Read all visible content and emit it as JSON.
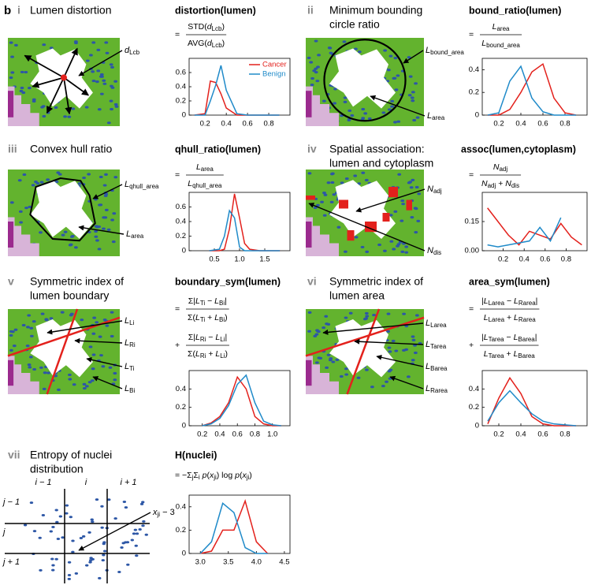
{
  "figure_label": "b",
  "panels": [
    {
      "numeral": "i",
      "title": [
        "Lumen distortion"
      ],
      "annotations": [
        [
          {
            "i": "d"
          },
          {
            "s": "Lcb"
          }
        ]
      ],
      "formula": [
        {
          "prefix": "=",
          "num": [
            "STD(",
            {
              "i": "d"
            },
            {
              "s": "Lcb"
            },
            ")"
          ],
          "den": [
            "AVG(",
            {
              "i": "d"
            },
            {
              "s": "Lcb"
            },
            ")"
          ]
        }
      ]
    },
    {
      "numeral": "ii",
      "title": [
        "Minimum bounding",
        "circle ratio"
      ],
      "annotations": [
        [
          {
            "i": "L"
          },
          {
            "s": "bound_area"
          }
        ],
        [
          {
            "i": "L"
          },
          {
            "s": "area"
          }
        ]
      ],
      "formula": [
        {
          "prefix": "=",
          "num": [
            {
              "i": "L"
            },
            {
              "s": "area"
            }
          ],
          "den": [
            {
              "i": "L"
            },
            {
              "s": "bound_area"
            }
          ]
        }
      ]
    },
    {
      "numeral": "iii",
      "title": [
        "Convex hull ratio"
      ],
      "annotations": [
        [
          {
            "i": "L"
          },
          {
            "s": "qhull_area"
          }
        ],
        [
          {
            "i": "L"
          },
          {
            "s": "area"
          }
        ]
      ],
      "formula": [
        {
          "prefix": "=",
          "num": [
            {
              "i": "L"
            },
            {
              "s": "area"
            }
          ],
          "den": [
            {
              "i": "L"
            },
            {
              "s": "qhull_area"
            }
          ]
        }
      ]
    },
    {
      "numeral": "iv",
      "title": [
        "Spatial association:",
        "lumen and cytoplasm"
      ],
      "annotations": [
        [
          {
            "i": "N"
          },
          {
            "s": "adj"
          }
        ],
        [
          {
            "i": "N"
          },
          {
            "s": "dis"
          }
        ]
      ],
      "formula": [
        {
          "prefix": "=",
          "num": [
            {
              "i": "N"
            },
            {
              "s": "adj"
            }
          ],
          "den": [
            {
              "i": "N"
            },
            {
              "s": "adj"
            },
            " + ",
            {
              "i": "N"
            },
            {
              "s": "dis"
            }
          ]
        }
      ]
    },
    {
      "numeral": "v",
      "title": [
        "Symmetric index of",
        "lumen boundary"
      ],
      "annotations": [
        [
          {
            "i": "L"
          },
          {
            "s": "Li"
          }
        ],
        [
          {
            "i": "L"
          },
          {
            "s": "Ri"
          }
        ],
        [
          {
            "i": "L"
          },
          {
            "s": "Ti"
          }
        ],
        [
          {
            "i": "L"
          },
          {
            "s": "Bi"
          }
        ]
      ],
      "formula": [
        {
          "prefix": "=",
          "num": [
            "Σ|",
            {
              "i": "L"
            },
            {
              "s": "Ti"
            },
            " − ",
            {
              "i": "L"
            },
            {
              "s": "Bi"
            },
            "|"
          ],
          "den": [
            "Σ(",
            {
              "i": "L"
            },
            {
              "s": "Ti"
            },
            " + ",
            {
              "i": "L"
            },
            {
              "s": "Bi"
            },
            ")"
          ]
        },
        {
          "prefix": "+",
          "num": [
            "Σ|",
            {
              "i": "L"
            },
            {
              "s": "Ri"
            },
            " − ",
            {
              "i": "L"
            },
            {
              "s": "Li"
            },
            "|"
          ],
          "den": [
            "Σ(",
            {
              "i": "L"
            },
            {
              "s": "Ri"
            },
            " + ",
            {
              "i": "L"
            },
            {
              "s": "Li"
            },
            ")"
          ]
        }
      ]
    },
    {
      "numeral": "vi",
      "title": [
        "Symmetric index of",
        "lumen area"
      ],
      "annotations": [
        [
          {
            "i": "L"
          },
          {
            "s": "Larea"
          }
        ],
        [
          {
            "i": "L"
          },
          {
            "s": "Tarea"
          }
        ],
        [
          {
            "i": "L"
          },
          {
            "s": "Barea"
          }
        ],
        [
          {
            "i": "L"
          },
          {
            "s": "Rarea"
          }
        ]
      ],
      "formula": [
        {
          "prefix": "=",
          "num": [
            "|",
            {
              "i": "L"
            },
            {
              "s": "Larea"
            },
            " − ",
            {
              "i": "L"
            },
            {
              "s": "Rarea"
            },
            "|"
          ],
          "den": [
            {
              "i": "L"
            },
            {
              "s": "Larea"
            },
            " + ",
            {
              "i": "L"
            },
            {
              "s": "Rarea"
            }
          ]
        },
        {
          "prefix": "+",
          "num": [
            "|",
            {
              "i": "L"
            },
            {
              "s": "Tarea"
            },
            " − ",
            {
              "i": "L"
            },
            {
              "s": "Barea"
            },
            "|"
          ],
          "den": [
            {
              "i": "L"
            },
            {
              "s": "Tarea"
            },
            " + ",
            {
              "i": "L"
            },
            {
              "s": "Barea"
            }
          ]
        }
      ]
    },
    {
      "numeral": "vii",
      "title": [
        "Entropy of nuclei",
        "distribution"
      ],
      "annotations": [
        [
          {
            "i": "x"
          },
          {
            "s": "ji"
          },
          " − 3"
        ]
      ],
      "col_labels": [
        "i − 1",
        "i",
        "i + 1"
      ],
      "row_labels": [
        "j − 1",
        "j",
        "j + 1"
      ],
      "formula": [
        {
          "prefix": "=",
          "line": [
            "−Σ",
            {
              "s": "j"
            },
            "Σ",
            {
              "s": "i"
            },
            " ",
            {
              "i": "p"
            },
            "(",
            {
              "i": "x"
            },
            {
              "s": "ji"
            },
            ") log ",
            {
              "i": "p"
            },
            "(",
            {
              "i": "x"
            },
            {
              "s": "ji"
            },
            ")"
          ]
        }
      ]
    }
  ],
  "chart_data": [
    {
      "type": "line",
      "title": "distortion(lumen)",
      "legend": "upper right",
      "x": [
        0.1,
        0.2,
        0.25,
        0.3,
        0.35,
        0.4,
        0.5,
        0.6,
        0.7,
        0.8,
        0.9
      ],
      "series": [
        {
          "name": "Cancer",
          "color": "#e3211c",
          "values": [
            0,
            0.02,
            0.48,
            0.46,
            0.3,
            0.1,
            0,
            0,
            0,
            0,
            0
          ]
        },
        {
          "name": "Benign",
          "color": "#1f8ac9",
          "values": [
            0,
            0,
            0.2,
            0.42,
            0.7,
            0.35,
            0.02,
            0,
            0,
            0,
            0
          ]
        }
      ],
      "xlim": [
        0.05,
        1.0
      ],
      "ylim": [
        0,
        0.8
      ],
      "xticks": [
        0.2,
        0.4,
        0.6,
        0.8
      ],
      "yticks": [
        0,
        0.2,
        0.4,
        0.6
      ]
    },
    {
      "type": "line",
      "title": "bound_ratio(lumen)",
      "x": [
        0.1,
        0.2,
        0.3,
        0.4,
        0.5,
        0.6,
        0.7,
        0.8,
        0.9
      ],
      "series": [
        {
          "color": "#e3211c",
          "values": [
            0,
            0,
            0.05,
            0.2,
            0.38,
            0.45,
            0.15,
            0.02,
            0
          ]
        },
        {
          "color": "#1f8ac9",
          "values": [
            0,
            0.02,
            0.3,
            0.43,
            0.15,
            0.03,
            0,
            0,
            0
          ]
        }
      ],
      "xlim": [
        0.05,
        1.0
      ],
      "ylim": [
        0,
        0.5
      ],
      "xticks": [
        0.2,
        0.4,
        0.6,
        0.8
      ],
      "yticks": [
        0,
        0.2,
        0.4
      ]
    },
    {
      "type": "line",
      "title": "qhull_ratio(lumen)",
      "x": [
        0.4,
        0.6,
        0.7,
        0.8,
        0.9,
        1.0,
        1.1,
        1.2,
        1.4,
        1.8
      ],
      "series": [
        {
          "color": "#e3211c",
          "values": [
            0,
            0,
            0.02,
            0.3,
            0.78,
            0.45,
            0.1,
            0.02,
            0,
            0
          ]
        },
        {
          "color": "#1f8ac9",
          "values": [
            0,
            0.02,
            0.2,
            0.55,
            0.45,
            0.05,
            0,
            0,
            0,
            0
          ]
        }
      ],
      "xlim": [
        0,
        2
      ],
      "ylim": [
        0,
        0.8
      ],
      "xticks": [
        0.5,
        {
          "value": 1,
          "label": "1.0"
        },
        1.5
      ],
      "yticks": [
        0,
        0.2,
        0.4,
        0.6
      ]
    },
    {
      "type": "line",
      "title": "assoc(lumen,cytoplasm)",
      "x": [
        0.05,
        0.15,
        0.25,
        0.35,
        0.45,
        0.55,
        0.65,
        0.75,
        0.85,
        0.95
      ],
      "series": [
        {
          "color": "#e3211c",
          "values": [
            0.22,
            0.15,
            0.08,
            0.03,
            0.1,
            0.08,
            0.06,
            0.14,
            0.07,
            0.03
          ]
        },
        {
          "color": "#1f8ac9",
          "values": [
            0.03,
            0.02,
            0.03,
            0.04,
            0.05,
            0.12,
            0.05,
            0.17,
            null,
            null
          ]
        }
      ],
      "xlim": [
        0,
        1
      ],
      "ylim": [
        0,
        0.3
      ],
      "xticks": [
        0.2,
        0.4,
        0.6,
        0.8
      ],
      "yticks": [
        {
          "value": 0,
          "label": "0.00"
        },
        0.15
      ]
    },
    {
      "type": "line",
      "title": "boundary_sym(lumen)",
      "x": [
        0.2,
        0.3,
        0.4,
        0.5,
        0.6,
        0.7,
        0.8,
        0.9,
        1.0,
        1.1
      ],
      "series": [
        {
          "color": "#e3211c",
          "values": [
            0,
            0.03,
            0.1,
            0.25,
            0.53,
            0.4,
            0.1,
            0.02,
            0,
            0
          ]
        },
        {
          "color": "#1f8ac9",
          "values": [
            0,
            0.02,
            0.08,
            0.22,
            0.45,
            0.55,
            0.25,
            0.05,
            0.01,
            0
          ]
        }
      ],
      "xlim": [
        0.05,
        1.2
      ],
      "ylim": [
        0,
        0.6
      ],
      "xticks": [
        0.2,
        0.4,
        0.6,
        0.8,
        {
          "value": 1,
          "label": "1.0"
        }
      ],
      "yticks": [
        0,
        0.2,
        0.4
      ]
    },
    {
      "type": "line",
      "title": "area_sym(lumen)",
      "x": [
        0.1,
        0.2,
        0.3,
        0.4,
        0.5,
        0.6,
        0.7,
        0.8,
        0.9
      ],
      "series": [
        {
          "color": "#e3211c",
          "values": [
            0.02,
            0.3,
            0.52,
            0.35,
            0.1,
            0.02,
            0,
            0,
            0
          ]
        },
        {
          "color": "#1f8ac9",
          "values": [
            0.05,
            0.25,
            0.38,
            0.25,
            0.13,
            0.05,
            0.02,
            0.01,
            0
          ]
        }
      ],
      "xlim": [
        0.05,
        1.0
      ],
      "ylim": [
        0,
        0.6
      ],
      "xticks": [
        0.2,
        0.4,
        0.6,
        0.8
      ],
      "yticks": [
        0,
        0.2,
        0.4
      ]
    },
    {
      "type": "line",
      "title": "H(nuclei)",
      "x": [
        3.0,
        3.2,
        3.4,
        3.6,
        3.8,
        4.0,
        4.2
      ],
      "series": [
        {
          "color": "#e3211c",
          "values": [
            0,
            0.02,
            0.2,
            0.2,
            0.45,
            0.1,
            0
          ]
        },
        {
          "color": "#1f8ac9",
          "values": [
            0,
            0.1,
            0.43,
            0.35,
            0.05,
            0,
            0
          ]
        }
      ],
      "xlim": [
        2.8,
        4.6
      ],
      "ylim": [
        0,
        0.5
      ],
      "xticks": [
        {
          "value": 3,
          "label": "3.0"
        },
        3.5,
        {
          "value": 4,
          "label": "4.0"
        },
        4.5
      ],
      "yticks": [
        0,
        0.2,
        0.4
      ]
    }
  ]
}
